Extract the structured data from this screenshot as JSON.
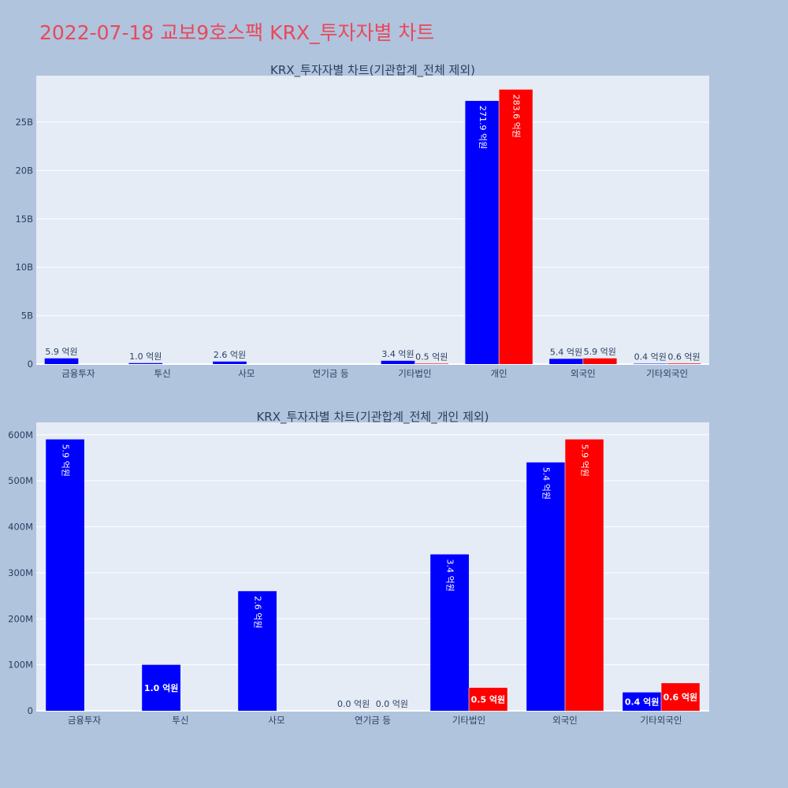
{
  "page": {
    "title": "2022-07-18 교보9호스팩 KRX_투자자별 차트"
  },
  "colors": {
    "background": "#b0c4de",
    "plot_bg": "#e5ecf6",
    "buy": "#0000ff",
    "sell": "#ff0000",
    "title": "#e8495a",
    "text": "#2a3f5f"
  },
  "chart_data": [
    {
      "type": "bar",
      "title": "KRX_투자자별 차트(기관합계_전체 제외)",
      "categories": [
        "금융투자",
        "투신",
        "사모",
        "연기금 등",
        "기타법인",
        "개인",
        "외국인",
        "기타외국인"
      ],
      "series": [
        {
          "color": "#0000ff",
          "values": [
            590000000,
            100000000,
            260000000,
            0,
            340000000,
            27190000000,
            540000000,
            40000000
          ]
        },
        {
          "color": "#ff0000",
          "values": [
            0,
            0,
            0,
            0,
            50000000,
            28360000000,
            590000000,
            60000000
          ]
        }
      ],
      "labels": [
        [
          "5.9 억원",
          "1.0 억원",
          "2.6 억원",
          "",
          "3.4 억원",
          "271.9 억원",
          "5.4 억원",
          "0.4 억원"
        ],
        [
          "",
          "",
          "",
          "",
          "0.5 억원",
          "283.6 억원",
          "5.9 억원",
          "0.6 억원"
        ]
      ],
      "yticks": [
        0,
        5000000000,
        10000000000,
        15000000000,
        20000000000,
        25000000000
      ],
      "ytick_labels": [
        "0",
        "5B",
        "10B",
        "15B",
        "20B",
        "25B"
      ],
      "ylim": [
        0,
        29800000000
      ],
      "grid": true,
      "xlabel": "",
      "ylabel": ""
    },
    {
      "type": "bar",
      "title": "KRX_투자자별 차트(기관합계_전체_개인 제외)",
      "categories": [
        "금융투자",
        "투신",
        "사모",
        "연기금 등",
        "기타법인",
        "외국인",
        "기타외국인"
      ],
      "series": [
        {
          "color": "#0000ff",
          "values": [
            590000000,
            100000000,
            260000000,
            0,
            340000000,
            540000000,
            40000000
          ]
        },
        {
          "color": "#ff0000",
          "values": [
            0,
            0,
            0,
            0,
            50000000,
            590000000,
            60000000
          ]
        }
      ],
      "labels": [
        [
          "5.9 억원",
          "1.0 억원",
          "2.6 억원",
          "0.0 억원",
          "3.4 억원",
          "5.4 억원",
          "0.4 억원"
        ],
        [
          "",
          "",
          "",
          "0.0 억원",
          "0.5 억원",
          "5.9 억원",
          "0.6 억원"
        ]
      ],
      "yticks": [
        0,
        100000000,
        200000000,
        300000000,
        400000000,
        500000000,
        600000000
      ],
      "ytick_labels": [
        "0",
        "100M",
        "200M",
        "300M",
        "400M",
        "500M",
        "600M"
      ],
      "ylim": [
        0,
        627000000
      ],
      "grid": true,
      "xlabel": "",
      "ylabel": ""
    }
  ]
}
